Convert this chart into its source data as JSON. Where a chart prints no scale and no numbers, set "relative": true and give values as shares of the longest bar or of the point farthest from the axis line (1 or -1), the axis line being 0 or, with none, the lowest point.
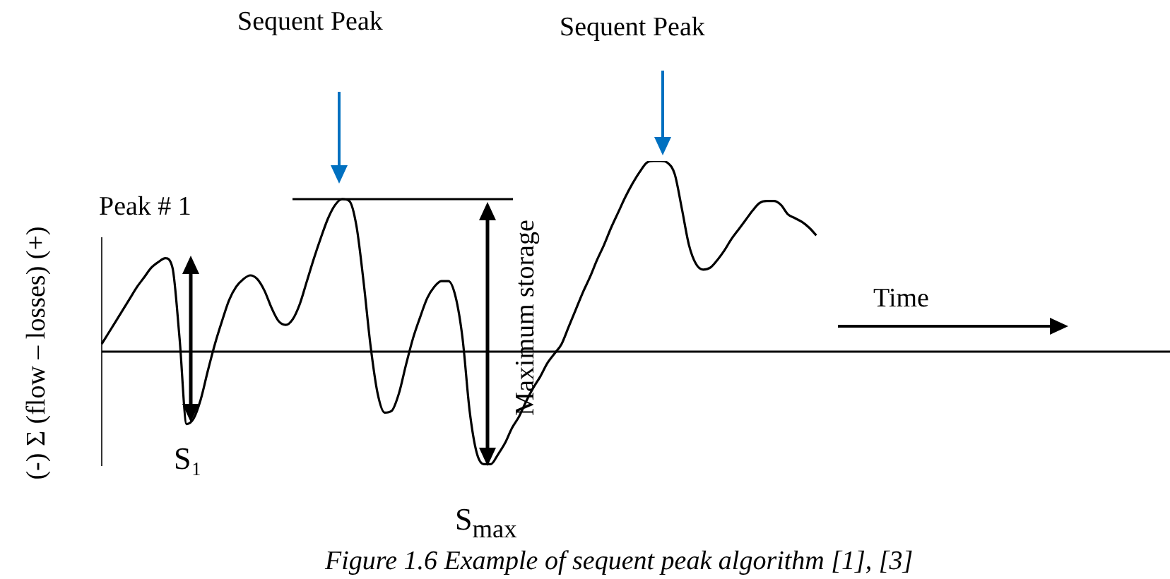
{
  "chart_data": {
    "type": "line",
    "relative": true,
    "ylabel": "(-)  Σ (flow – losses)   (+)",
    "xlabel": "Time",
    "color": "#000000",
    "marker": "none",
    "line_style": "solid",
    "legend": false,
    "categories": [
      null,
      null,
      null,
      null,
      null,
      null,
      null,
      null,
      null,
      null,
      null,
      null,
      null,
      null,
      null,
      null,
      null,
      null,
      null,
      null,
      null,
      null,
      null,
      null,
      null,
      null,
      null,
      null,
      null,
      null,
      null,
      null,
      null,
      null,
      null,
      null,
      null,
      null,
      null,
      null,
      null,
      null,
      null,
      null,
      null,
      null,
      null,
      null,
      null,
      null,
      null,
      null,
      null,
      null,
      null,
      null,
      null,
      null,
      null,
      null,
      null,
      null,
      null,
      null,
      null,
      null,
      null,
      null,
      null,
      null,
      null,
      null,
      null,
      null,
      null,
      null,
      null,
      null,
      null,
      null,
      null,
      null,
      null,
      null,
      null,
      null,
      null,
      null,
      null,
      null,
      null,
      null,
      null,
      null,
      null,
      null,
      null,
      null,
      null,
      null,
      null,
      null,
      null,
      null,
      null,
      null,
      null,
      null,
      null,
      null,
      null,
      null,
      null,
      null,
      null,
      null,
      null,
      null,
      null,
      null,
      null,
      null,
      null,
      null,
      null,
      null,
      null,
      null,
      null,
      null,
      null,
      null,
      null,
      null,
      null,
      null,
      null,
      null,
      null,
      null,
      null,
      null,
      null,
      null,
      null,
      null,
      null,
      null,
      null,
      null,
      null,
      null
    ],
    "values": [
      0.04,
      0.1,
      0.16,
      0.22,
      0.28,
      0.34,
      0.39,
      0.44,
      0.47,
      0.49,
      0.44,
      0.07,
      -0.38,
      -0.35,
      -0.25,
      -0.1,
      0.04,
      0.16,
      0.27,
      0.34,
      0.38,
      0.4,
      0.38,
      0.32,
      0.23,
      0.16,
      0.14,
      0.17,
      0.25,
      0.37,
      0.49,
      0.6,
      0.7,
      0.77,
      0.8,
      0.79,
      0.66,
      0.37,
      0.03,
      -0.22,
      -0.32,
      -0.31,
      -0.22,
      -0.07,
      0.07,
      0.18,
      0.28,
      0.34,
      0.37,
      0.37,
      0.29,
      0.07,
      -0.31,
      -0.53,
      -0.59,
      -0.59,
      -0.54,
      -0.48,
      -0.4,
      -0.34,
      -0.26,
      -0.19,
      -0.13,
      -0.06,
      -0.01,
      0.04,
      0.13,
      0.22,
      0.31,
      0.39,
      0.48,
      0.56,
      0.65,
      0.73,
      0.81,
      0.88,
      0.94,
      0.99,
      1.0,
      1.0,
      0.99,
      0.93,
      0.75,
      0.56,
      0.46,
      0.43,
      0.44,
      0.48,
      0.53,
      0.59,
      0.64,
      0.69,
      0.74,
      0.78,
      0.79,
      0.79,
      0.77,
      0.72,
      0.7,
      0.68,
      0.65,
      0.61,
      null,
      null,
      null,
      null,
      null,
      null,
      null,
      null,
      null,
      null,
      null,
      null,
      null,
      null,
      null,
      null,
      null,
      null,
      null,
      null,
      null,
      null,
      null,
      null,
      null,
      null,
      null,
      null,
      null,
      null,
      null,
      null,
      null,
      null,
      null,
      null,
      null,
      null,
      null,
      null,
      null,
      null,
      null,
      null,
      null,
      null,
      null,
      null,
      null,
      null
    ],
    "ref_lines": [
      {
        "axis": "y",
        "value": 0.8,
        "color": "#000000"
      }
    ],
    "annotations": [
      "Sequent Peak",
      "Sequent Peak",
      "Peak # 1",
      "S₁",
      "S$_{max}$",
      "Maximum storage",
      "Figure 1.6 Example of sequent peak algorithm [1], [3]"
    ]
  }
}
